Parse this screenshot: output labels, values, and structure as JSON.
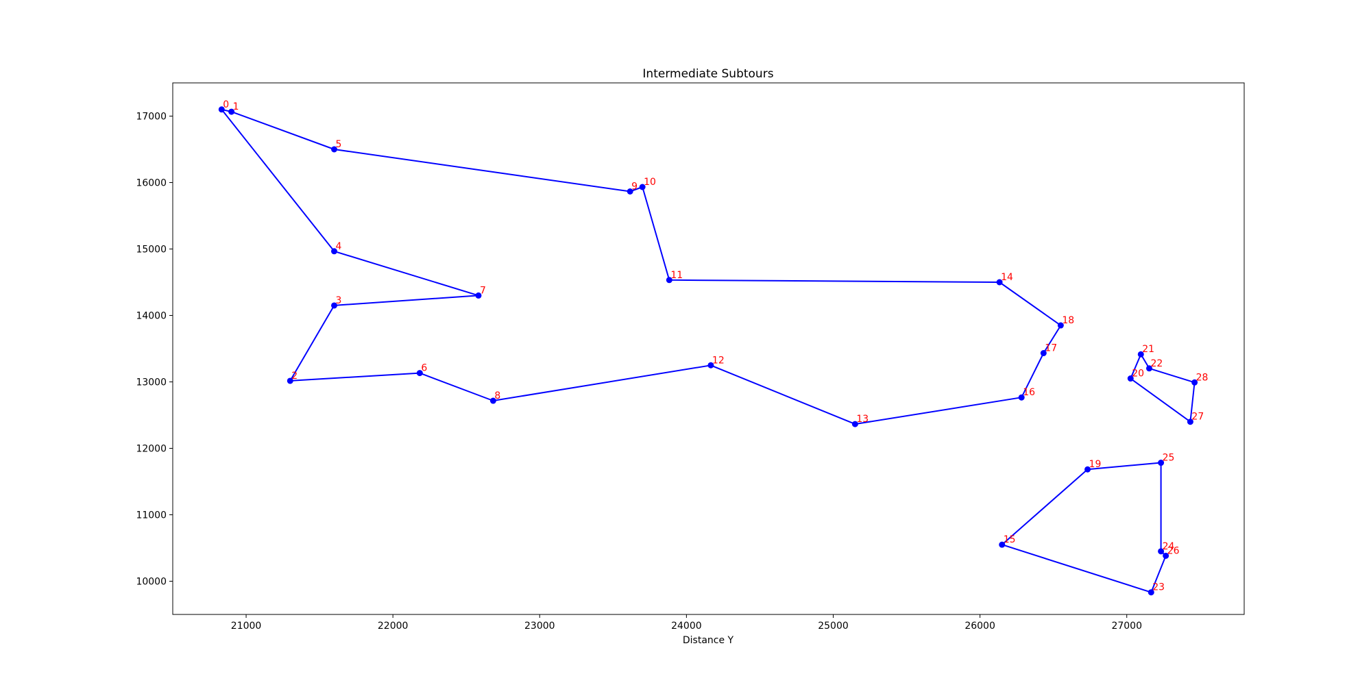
{
  "chart_data": {
    "type": "line",
    "title": "Intermediate Subtours",
    "xlabel": "Distance Y",
    "ylabel": "",
    "xlim": [
      20500,
      27800
    ],
    "ylim": [
      9500,
      17500
    ],
    "xticks": [
      21000,
      22000,
      23000,
      24000,
      25000,
      26000,
      27000
    ],
    "yticks": [
      10000,
      11000,
      12000,
      13000,
      14000,
      15000,
      16000,
      17000
    ],
    "grid": false,
    "line_color": "#0000ff",
    "label_color": "#ff0000",
    "points": [
      {
        "label": "0",
        "x": 20833,
        "y": 17100
      },
      {
        "label": "1",
        "x": 20900,
        "y": 17066
      },
      {
        "label": "2",
        "x": 21300,
        "y": 13016
      },
      {
        "label": "3",
        "x": 21600,
        "y": 14150
      },
      {
        "label": "4",
        "x": 21600,
        "y": 14966
      },
      {
        "label": "5",
        "x": 21600,
        "y": 16500
      },
      {
        "label": "6",
        "x": 22183,
        "y": 13133
      },
      {
        "label": "7",
        "x": 22583,
        "y": 14300
      },
      {
        "label": "8",
        "x": 22683,
        "y": 12716
      },
      {
        "label": "9",
        "x": 23616,
        "y": 15866
      },
      {
        "label": "10",
        "x": 23700,
        "y": 15933
      },
      {
        "label": "11",
        "x": 23883,
        "y": 14533
      },
      {
        "label": "12",
        "x": 24166,
        "y": 13250
      },
      {
        "label": "13",
        "x": 25149,
        "y": 12365
      },
      {
        "label": "14",
        "x": 26133,
        "y": 14500
      },
      {
        "label": "15",
        "x": 26150,
        "y": 10550
      },
      {
        "label": "16",
        "x": 26283,
        "y": 12766
      },
      {
        "label": "17",
        "x": 26433,
        "y": 13433
      },
      {
        "label": "18",
        "x": 26550,
        "y": 13850
      },
      {
        "label": "19",
        "x": 26733,
        "y": 11683
      },
      {
        "label": "20",
        "x": 27026,
        "y": 13051
      },
      {
        "label": "21",
        "x": 27096,
        "y": 13415
      },
      {
        "label": "22",
        "x": 27153,
        "y": 13203
      },
      {
        "label": "23",
        "x": 27166,
        "y": 9833
      },
      {
        "label": "24",
        "x": 27233,
        "y": 10450
      },
      {
        "label": "25",
        "x": 27233,
        "y": 11783
      },
      {
        "label": "26",
        "x": 27266,
        "y": 10383
      },
      {
        "label": "27",
        "x": 27433,
        "y": 12400
      },
      {
        "label": "28",
        "x": 27462,
        "y": 12992
      }
    ],
    "subtours": [
      [
        0,
        1,
        5,
        9,
        10,
        11,
        14,
        18,
        17,
        16,
        13,
        12,
        8,
        6,
        2,
        3,
        7,
        4,
        0
      ],
      [
        20,
        21,
        22,
        28,
        27,
        20
      ],
      [
        15,
        19,
        25,
        24,
        26,
        23,
        15
      ]
    ]
  }
}
